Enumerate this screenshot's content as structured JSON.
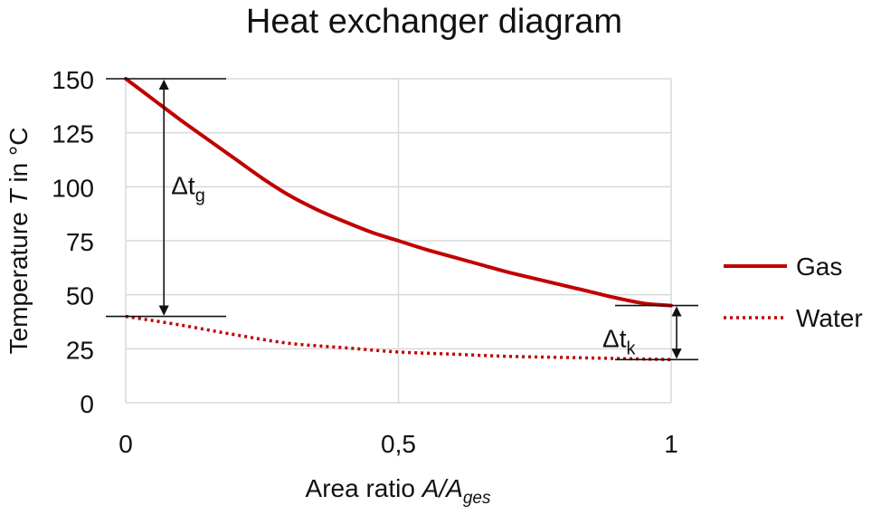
{
  "chart_data": {
    "type": "line",
    "title": "Heat exchanger diagram",
    "xlabel": {
      "main": "Area ratio ",
      "var": "A/A",
      "sub": "ges"
    },
    "ylabel": {
      "pre": "Temperature ",
      "var": "T",
      "post": " in °C"
    },
    "xlim": [
      0,
      1
    ],
    "ylim": [
      0,
      150
    ],
    "x_ticks": [
      0,
      0.5,
      1
    ],
    "x_tick_labels": [
      "0",
      "0,5",
      "1"
    ],
    "y_ticks": [
      0,
      25,
      50,
      75,
      100,
      125,
      150
    ],
    "y_tick_labels": [
      "0",
      "25",
      "50",
      "75",
      "100",
      "125",
      "150"
    ],
    "grid": true,
    "legend_position": "right",
    "series": [
      {
        "name": "Gas",
        "style": "solid",
        "color": "#c00000",
        "x": [
          0,
          0.05,
          0.1,
          0.15,
          0.2,
          0.25,
          0.3,
          0.35,
          0.4,
          0.45,
          0.5,
          0.55,
          0.6,
          0.65,
          0.7,
          0.75,
          0.8,
          0.85,
          0.9,
          0.95,
          1
        ],
        "y": [
          150,
          140.5,
          131,
          122,
          113,
          104,
          96,
          89.5,
          84,
          79,
          75,
          71,
          67.5,
          64,
          60.5,
          57.5,
          54.5,
          51.5,
          48.5,
          46,
          45
        ]
      },
      {
        "name": "Water",
        "style": "dotted",
        "color": "#c00000",
        "x": [
          0,
          0.1,
          0.2,
          0.3,
          0.4,
          0.5,
          0.6,
          0.7,
          0.8,
          0.9,
          1
        ],
        "y": [
          40,
          36,
          31.5,
          27.5,
          25.5,
          23.5,
          22.5,
          21.5,
          21,
          20.5,
          20
        ]
      }
    ],
    "annotations": [
      {
        "label": "Δt",
        "sub": "g",
        "x": 0.07,
        "y_from": 40,
        "y_to": 150
      },
      {
        "label": "Δt",
        "sub": "k",
        "x": 1.01,
        "y_from": 20,
        "y_to": 45
      }
    ]
  }
}
